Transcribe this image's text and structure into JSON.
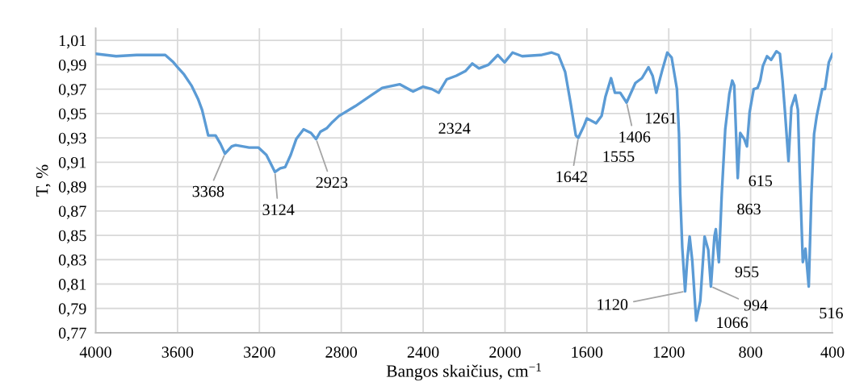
{
  "chart_data": {
    "type": "line",
    "xlabel": "Bangos skaičius, cm$^{−1}$",
    "ylabel": "T, %",
    "x": [
      4000,
      3900,
      3800,
      3700,
      3660,
      3620,
      3600,
      3568,
      3532,
      3500,
      3480,
      3450,
      3414,
      3390,
      3368,
      3335,
      3316,
      3250,
      3204,
      3166,
      3145,
      3124,
      3098,
      3074,
      3047,
      3020,
      2984,
      2948,
      2923,
      2902,
      2870,
      2843,
      2811,
      2732,
      2653,
      2600,
      2515,
      2449,
      2400,
      2357,
      2324,
      2285,
      2238,
      2192,
      2160,
      2127,
      2081,
      2035,
      2002,
      1963,
      1916,
      1825,
      1772,
      1739,
      1706,
      1680,
      1654,
      1642,
      1614,
      1600,
      1555,
      1528,
      1509,
      1482,
      1463,
      1437,
      1406,
      1363,
      1331,
      1299,
      1279,
      1261,
      1231,
      1207,
      1186,
      1160,
      1150,
      1144,
      1134,
      1120,
      1110,
      1098,
      1085,
      1066,
      1046,
      1025,
      1007,
      994,
      977,
      970,
      955,
      941,
      924,
      904,
      890,
      880,
      863,
      851,
      831,
      818,
      805,
      785,
      766,
      753,
      740,
      720,
      700,
      674,
      657,
      644,
      632,
      615,
      601,
      582,
      569,
      560,
      545,
      532,
      516,
      503,
      490,
      477,
      450,
      437,
      418,
      400
    ],
    "values": [
      0.999,
      0.997,
      0.998,
      0.998,
      0.998,
      0.992,
      0.988,
      0.982,
      0.973,
      0.962,
      0.953,
      0.932,
      0.932,
      0.925,
      0.917,
      0.923,
      0.924,
      0.922,
      0.922,
      0.916,
      0.909,
      0.902,
      0.905,
      0.906,
      0.916,
      0.929,
      0.937,
      0.934,
      0.929,
      0.935,
      0.938,
      0.943,
      0.948,
      0.956,
      0.965,
      0.971,
      0.974,
      0.968,
      0.972,
      0.97,
      0.967,
      0.978,
      0.981,
      0.985,
      0.991,
      0.987,
      0.99,
      0.998,
      0.992,
      1.0,
      0.997,
      0.998,
      1.0,
      0.998,
      0.984,
      0.959,
      0.932,
      0.93,
      0.94,
      0.946,
      0.942,
      0.948,
      0.964,
      0.979,
      0.967,
      0.967,
      0.959,
      0.975,
      0.979,
      0.988,
      0.981,
      0.967,
      0.986,
      1.0,
      0.996,
      0.97,
      0.933,
      0.884,
      0.84,
      0.804,
      0.829,
      0.849,
      0.829,
      0.78,
      0.796,
      0.849,
      0.838,
      0.808,
      0.849,
      0.855,
      0.828,
      0.884,
      0.937,
      0.966,
      0.977,
      0.973,
      0.897,
      0.934,
      0.929,
      0.923,
      0.951,
      0.97,
      0.971,
      0.977,
      0.989,
      0.997,
      0.994,
      1.001,
      0.999,
      0.977,
      0.951,
      0.911,
      0.955,
      0.965,
      0.953,
      0.902,
      0.828,
      0.839,
      0.808,
      0.884,
      0.933,
      0.948,
      0.97,
      0.97,
      0.992,
      0.999
    ],
    "color": "#5b9bd5",
    "xlim": [
      4000,
      400
    ],
    "xticks": [
      4000,
      3600,
      3200,
      2800,
      2400,
      2000,
      1600,
      1200,
      800,
      400
    ],
    "ylim": [
      0.77,
      1.02
    ],
    "yticks": [
      {
        "value": 0.77,
        "label": "0,77"
      },
      {
        "value": 0.79,
        "label": "0,79"
      },
      {
        "value": 0.81,
        "label": "0,81"
      },
      {
        "value": 0.83,
        "label": "0,83"
      },
      {
        "value": 0.85,
        "label": "0,85"
      },
      {
        "value": 0.87,
        "label": "0,87"
      },
      {
        "value": 0.89,
        "label": "0,89"
      },
      {
        "value": 0.91,
        "label": "0,91"
      },
      {
        "value": 0.93,
        "label": "0,93"
      },
      {
        "value": 0.95,
        "label": "0,95"
      },
      {
        "value": 0.97,
        "label": "0,97"
      },
      {
        "value": 0.99,
        "label": "0,99"
      },
      {
        "value": 1.01,
        "label": "1,01"
      }
    ],
    "grid": true,
    "marker": "none",
    "line_style": "solid",
    "annotations": [
      {
        "text": "3368",
        "x": 3368,
        "y": 0.917
      },
      {
        "text": "3124",
        "x": 3124,
        "y": 0.902
      },
      {
        "text": "2923",
        "x": 2923,
        "y": 0.929
      },
      {
        "text": "2324",
        "x": 2324,
        "y": 0.967
      },
      {
        "text": "1642",
        "x": 1642,
        "y": 0.93
      },
      {
        "text": "1555",
        "x": 1555,
        "y": 0.942
      },
      {
        "text": "1406",
        "x": 1406,
        "y": 0.959
      },
      {
        "text": "1261",
        "x": 1261,
        "y": 0.967
      },
      {
        "text": "1120",
        "x": 1120,
        "y": 0.804
      },
      {
        "text": "1066",
        "x": 1066,
        "y": 0.78
      },
      {
        "text": "994",
        "x": 994,
        "y": 0.808
      },
      {
        "text": "955",
        "x": 955,
        "y": 0.828
      },
      {
        "text": "863",
        "x": 863,
        "y": 0.897
      },
      {
        "text": "615",
        "x": 615,
        "y": 0.911
      },
      {
        "text": "516",
        "x": 516,
        "y": 0.808
      }
    ]
  }
}
